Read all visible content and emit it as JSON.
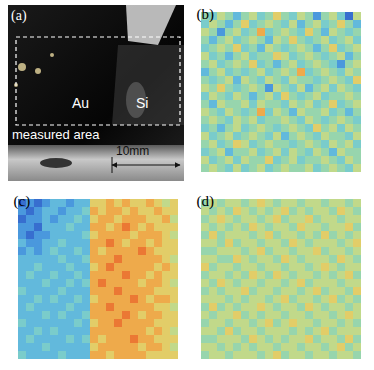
{
  "photo": {
    "label": "(a)",
    "regions": [
      "Au",
      "Si"
    ],
    "box_label": "measured area",
    "scale_bar": "10mm"
  },
  "chart_data": [
    {
      "type": "heatmap",
      "title": "(b)",
      "tick_labels": false,
      "color_range": [
        0,
        10
      ],
      "cells": [
        [
          5,
          4,
          6,
          5,
          3,
          5,
          6,
          4,
          5,
          7,
          5,
          4,
          6,
          5,
          2,
          5,
          6,
          4,
          1,
          6
        ],
        [
          4,
          6,
          5,
          3,
          5,
          7,
          4,
          5,
          6,
          5,
          4,
          6,
          3,
          5,
          6,
          4,
          5,
          7,
          5,
          3
        ],
        [
          6,
          5,
          2,
          5,
          6,
          4,
          5,
          8,
          4,
          5,
          6,
          5,
          4,
          7,
          5,
          3,
          6,
          5,
          4,
          5
        ],
        [
          5,
          3,
          5,
          6,
          4,
          5,
          6,
          5,
          3,
          6,
          5,
          7,
          5,
          4,
          5,
          6,
          4,
          5,
          6,
          4
        ],
        [
          4,
          5,
          6,
          5,
          7,
          4,
          5,
          3,
          6,
          5,
          4,
          5,
          6,
          5,
          3,
          5,
          7,
          4,
          5,
          6
        ],
        [
          6,
          4,
          5,
          3,
          5,
          6,
          4,
          5,
          5,
          7,
          6,
          4,
          5,
          6,
          5,
          4,
          5,
          6,
          3,
          5
        ],
        [
          5,
          6,
          4,
          5,
          6,
          5,
          7,
          4,
          5,
          3,
          5,
          6,
          4,
          5,
          6,
          5,
          4,
          2,
          5,
          6
        ],
        [
          3,
          5,
          6,
          4,
          5,
          4,
          5,
          6,
          4,
          5,
          6,
          5,
          8,
          4,
          5,
          6,
          5,
          4,
          6,
          5
        ],
        [
          5,
          4,
          5,
          6,
          3,
          6,
          5,
          4,
          6,
          5,
          4,
          6,
          5,
          5,
          4,
          5,
          6,
          5,
          4,
          7
        ],
        [
          6,
          5,
          7,
          5,
          4,
          5,
          6,
          5,
          2,
          6,
          5,
          4,
          6,
          3,
          5,
          6,
          4,
          6,
          5,
          4
        ],
        [
          4,
          6,
          5,
          4,
          6,
          5,
          3,
          5,
          6,
          4,
          7,
          5,
          4,
          5,
          6,
          4,
          5,
          5,
          6,
          5
        ],
        [
          5,
          3,
          6,
          5,
          5,
          6,
          4,
          6,
          5,
          5,
          4,
          6,
          5,
          6,
          4,
          5,
          7,
          4,
          5,
          6
        ],
        [
          6,
          5,
          4,
          6,
          5,
          4,
          5,
          8,
          4,
          6,
          5,
          3,
          6,
          5,
          5,
          6,
          4,
          5,
          3,
          5
        ],
        [
          5,
          6,
          5,
          4,
          6,
          5,
          6,
          4,
          5,
          5,
          6,
          5,
          4,
          6,
          5,
          4,
          5,
          6,
          5,
          4
        ],
        [
          4,
          5,
          3,
          5,
          6,
          4,
          5,
          6,
          5,
          4,
          5,
          6,
          5,
          4,
          7,
          5,
          6,
          4,
          6,
          5
        ],
        [
          6,
          4,
          5,
          6,
          4,
          5,
          6,
          5,
          4,
          6,
          3,
          5,
          6,
          5,
          4,
          6,
          5,
          5,
          4,
          6
        ],
        [
          5,
          6,
          4,
          5,
          7,
          6,
          4,
          5,
          6,
          5,
          5,
          4,
          5,
          6,
          5,
          4,
          6,
          5,
          6,
          4
        ],
        [
          4,
          5,
          6,
          3,
          5,
          5,
          6,
          4,
          5,
          6,
          4,
          6,
          5,
          4,
          6,
          5,
          3,
          6,
          5,
          5
        ],
        [
          6,
          4,
          5,
          6,
          4,
          6,
          5,
          5,
          7,
          4,
          5,
          6,
          4,
          5,
          5,
          6,
          5,
          4,
          6,
          5
        ],
        [
          5,
          6,
          5,
          4,
          6,
          4,
          5,
          6,
          4,
          5,
          6,
          5,
          5,
          6,
          4,
          5,
          6,
          5,
          4,
          6
        ]
      ]
    },
    {
      "type": "heatmap",
      "title": "(c)",
      "tick_labels": false,
      "color_range": [
        0,
        10
      ],
      "cells": [
        [
          1,
          2,
          1,
          2,
          3,
          3,
          2,
          3,
          3,
          7,
          7,
          8,
          7,
          8,
          7,
          7,
          8,
          7,
          6,
          7
        ],
        [
          2,
          1,
          2,
          3,
          3,
          2,
          3,
          3,
          4,
          8,
          7,
          8,
          8,
          7,
          8,
          7,
          7,
          8,
          7,
          7
        ],
        [
          1,
          2,
          2,
          3,
          2,
          3,
          3,
          4,
          3,
          7,
          8,
          8,
          7,
          8,
          8,
          8,
          7,
          7,
          8,
          6
        ],
        [
          2,
          2,
          1,
          3,
          3,
          3,
          4,
          3,
          3,
          8,
          8,
          7,
          8,
          9,
          8,
          7,
          8,
          7,
          7,
          7
        ],
        [
          2,
          1,
          2,
          2,
          3,
          3,
          3,
          3,
          4,
          7,
          8,
          8,
          8,
          8,
          7,
          8,
          8,
          8,
          7,
          6
        ],
        [
          3,
          2,
          2,
          3,
          3,
          4,
          3,
          3,
          3,
          8,
          8,
          9,
          8,
          7,
          8,
          8,
          7,
          8,
          7,
          7
        ],
        [
          2,
          3,
          2,
          3,
          4,
          3,
          3,
          4,
          3,
          8,
          7,
          8,
          8,
          8,
          8,
          9,
          8,
          7,
          7,
          7
        ],
        [
          3,
          3,
          3,
          3,
          3,
          4,
          3,
          3,
          4,
          8,
          8,
          8,
          9,
          8,
          8,
          8,
          8,
          8,
          7,
          6
        ],
        [
          3,
          3,
          4,
          3,
          3,
          3,
          4,
          3,
          3,
          7,
          8,
          9,
          8,
          8,
          8,
          8,
          8,
          7,
          8,
          7
        ],
        [
          3,
          4,
          3,
          3,
          4,
          3,
          3,
          4,
          3,
          8,
          8,
          8,
          8,
          9,
          8,
          8,
          7,
          8,
          7,
          7
        ],
        [
          3,
          3,
          3,
          4,
          3,
          3,
          4,
          3,
          4,
          8,
          9,
          8,
          8,
          8,
          8,
          7,
          8,
          8,
          7,
          6
        ],
        [
          4,
          3,
          3,
          3,
          3,
          4,
          3,
          3,
          3,
          8,
          8,
          8,
          9,
          8,
          8,
          8,
          8,
          7,
          7,
          7
        ],
        [
          3,
          3,
          4,
          3,
          4,
          3,
          3,
          4,
          3,
          7,
          8,
          8,
          8,
          8,
          9,
          8,
          7,
          8,
          8,
          7
        ],
        [
          3,
          4,
          3,
          3,
          3,
          3,
          4,
          3,
          3,
          8,
          8,
          9,
          8,
          8,
          8,
          8,
          8,
          7,
          7,
          6
        ],
        [
          3,
          3,
          3,
          4,
          3,
          4,
          3,
          3,
          4,
          8,
          8,
          8,
          8,
          9,
          8,
          7,
          8,
          8,
          7,
          7
        ],
        [
          4,
          3,
          3,
          3,
          3,
          3,
          3,
          4,
          3,
          7,
          8,
          8,
          9,
          8,
          8,
          8,
          8,
          7,
          7,
          7
        ],
        [
          3,
          3,
          4,
          3,
          4,
          3,
          3,
          3,
          3,
          8,
          8,
          8,
          8,
          8,
          8,
          8,
          7,
          8,
          7,
          6
        ],
        [
          3,
          4,
          3,
          3,
          3,
          3,
          4,
          3,
          4,
          8,
          7,
          8,
          8,
          8,
          9,
          8,
          8,
          7,
          7,
          7
        ],
        [
          3,
          3,
          3,
          4,
          3,
          3,
          3,
          3,
          3,
          7,
          8,
          8,
          8,
          8,
          8,
          7,
          8,
          8,
          7,
          6
        ],
        [
          4,
          3,
          3,
          3,
          3,
          4,
          3,
          3,
          3,
          8,
          8,
          7,
          8,
          8,
          8,
          8,
          7,
          7,
          7,
          7
        ]
      ]
    },
    {
      "type": "heatmap",
      "title": "(d)",
      "tick_labels": false,
      "color_range": [
        0,
        10
      ],
      "cells": [
        [
          5,
          6,
          5,
          6,
          6,
          5,
          6,
          7,
          6,
          5,
          6,
          6,
          5,
          6,
          6,
          5,
          6,
          6,
          5,
          6
        ],
        [
          6,
          5,
          6,
          5,
          7,
          6,
          5,
          6,
          5,
          6,
          7,
          5,
          6,
          5,
          6,
          6,
          5,
          7,
          6,
          5
        ],
        [
          5,
          6,
          7,
          6,
          5,
          6,
          6,
          5,
          6,
          7,
          5,
          6,
          6,
          7,
          5,
          6,
          6,
          5,
          6,
          6
        ],
        [
          6,
          5,
          6,
          5,
          6,
          5,
          7,
          6,
          5,
          6,
          6,
          5,
          7,
          6,
          6,
          5,
          6,
          6,
          7,
          5
        ],
        [
          5,
          7,
          5,
          6,
          6,
          6,
          5,
          6,
          7,
          5,
          6,
          6,
          5,
          6,
          5,
          7,
          5,
          6,
          5,
          6
        ],
        [
          6,
          6,
          5,
          7,
          5,
          6,
          6,
          5,
          6,
          6,
          5,
          7,
          6,
          5,
          6,
          6,
          6,
          5,
          6,
          7
        ],
        [
          5,
          5,
          6,
          6,
          6,
          5,
          6,
          7,
          5,
          6,
          6,
          5,
          6,
          6,
          7,
          5,
          6,
          6,
          5,
          6
        ],
        [
          6,
          6,
          5,
          5,
          7,
          6,
          5,
          6,
          6,
          5,
          7,
          6,
          5,
          6,
          6,
          6,
          5,
          7,
          6,
          5
        ],
        [
          7,
          5,
          6,
          6,
          5,
          6,
          6,
          5,
          6,
          6,
          5,
          6,
          6,
          5,
          6,
          7,
          6,
          5,
          6,
          6
        ],
        [
          5,
          6,
          6,
          5,
          6,
          5,
          7,
          6,
          5,
          7,
          6,
          5,
          6,
          6,
          5,
          6,
          5,
          6,
          7,
          5
        ],
        [
          6,
          5,
          7,
          6,
          5,
          6,
          6,
          5,
          6,
          6,
          5,
          6,
          7,
          5,
          6,
          6,
          6,
          5,
          6,
          6
        ],
        [
          5,
          6,
          5,
          6,
          6,
          7,
          5,
          6,
          6,
          5,
          6,
          6,
          5,
          6,
          7,
          5,
          6,
          6,
          5,
          7
        ],
        [
          6,
          6,
          6,
          5,
          6,
          5,
          6,
          6,
          5,
          6,
          7,
          5,
          6,
          6,
          5,
          6,
          7,
          5,
          6,
          5
        ],
        [
          5,
          7,
          5,
          6,
          5,
          6,
          6,
          7,
          6,
          5,
          6,
          6,
          5,
          7,
          6,
          5,
          6,
          6,
          5,
          6
        ],
        [
          6,
          5,
          6,
          6,
          7,
          5,
          6,
          5,
          6,
          6,
          5,
          6,
          6,
          5,
          6,
          6,
          5,
          6,
          7,
          6
        ],
        [
          5,
          6,
          6,
          5,
          6,
          6,
          5,
          6,
          7,
          5,
          6,
          7,
          6,
          6,
          5,
          6,
          6,
          5,
          6,
          5
        ],
        [
          6,
          6,
          5,
          7,
          5,
          6,
          6,
          5,
          6,
          6,
          6,
          5,
          6,
          5,
          6,
          7,
          5,
          6,
          6,
          6
        ],
        [
          5,
          5,
          6,
          6,
          6,
          5,
          7,
          6,
          5,
          6,
          5,
          6,
          6,
          7,
          5,
          6,
          6,
          5,
          7,
          5
        ],
        [
          6,
          6,
          5,
          6,
          5,
          6,
          5,
          6,
          6,
          5,
          6,
          6,
          5,
          6,
          6,
          5,
          6,
          7,
          5,
          6
        ],
        [
          5,
          6,
          6,
          5,
          6,
          6,
          6,
          5,
          6,
          7,
          5,
          6,
          6,
          5,
          6,
          6,
          5,
          6,
          6,
          5
        ]
      ]
    }
  ]
}
